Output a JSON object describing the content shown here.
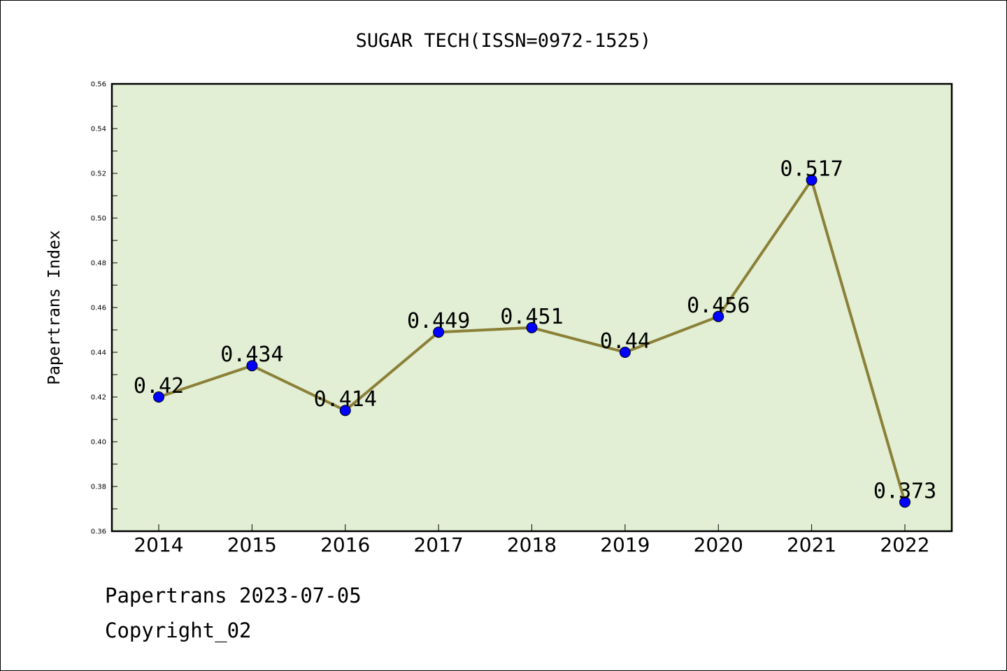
{
  "chart_data": {
    "type": "line",
    "title": "SUGAR TECH(ISSN=0972-1525)",
    "xlabel": "",
    "ylabel": "Papertrans Index",
    "categories": [
      "2014",
      "2015",
      "2016",
      "2017",
      "2018",
      "2019",
      "2020",
      "2021",
      "2022"
    ],
    "series": [
      {
        "values": [
          0.42,
          0.434,
          0.414,
          0.449,
          0.451,
          0.44,
          0.456,
          0.517,
          0.373
        ],
        "labels": [
          "0.42",
          "0.434",
          "0.414",
          "0.449",
          "0.451",
          "0.44",
          "0.456",
          "0.517",
          "0.373"
        ]
      }
    ],
    "ylim": [
      0.36,
      0.56
    ],
    "yticks": [
      "0.36",
      "0.38",
      "0.40",
      "0.42",
      "0.44",
      "0.46",
      "0.48",
      "0.50",
      "0.52",
      "0.54",
      "0.56"
    ],
    "grid": false,
    "legend": "none",
    "colors": {
      "plot_background": "#e2efd4",
      "line": "#8b8038",
      "marker": "#0000ff",
      "axis": "#000000"
    }
  },
  "footer": {
    "source": "Papertrans 2023-07-05",
    "copyright": "Copyright_02"
  }
}
